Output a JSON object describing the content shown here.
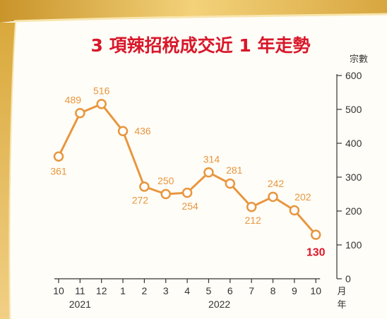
{
  "chart_data": {
    "type": "line",
    "title": "3 項辣招稅成交近 1 年走勢",
    "ylabel": "宗數",
    "xlabel_month": "月",
    "xlabel_year": "年",
    "ylim": [
      0,
      600
    ],
    "yticks": [
      "0",
      "100",
      "200",
      "300",
      "400",
      "500",
      "600"
    ],
    "categories": [
      "10",
      "11",
      "12",
      "1",
      "2",
      "3",
      "4",
      "5",
      "6",
      "7",
      "8",
      "9",
      "10"
    ],
    "year_labels": [
      {
        "label": "2021",
        "span": [
          0,
          2
        ]
      },
      {
        "label": "2022",
        "span": [
          3,
          12
        ]
      }
    ],
    "series": [
      {
        "values": [
          361,
          489,
          516,
          436,
          272,
          250,
          254,
          314,
          281,
          212,
          242,
          202,
          130
        ]
      }
    ],
    "highlight_index": 12,
    "grid": false,
    "colors": {
      "line": "#e8963f",
      "title": "#d8172a",
      "highlight": "#d8172a",
      "frame": "#d9a93c",
      "background": "#fffdf7"
    }
  }
}
